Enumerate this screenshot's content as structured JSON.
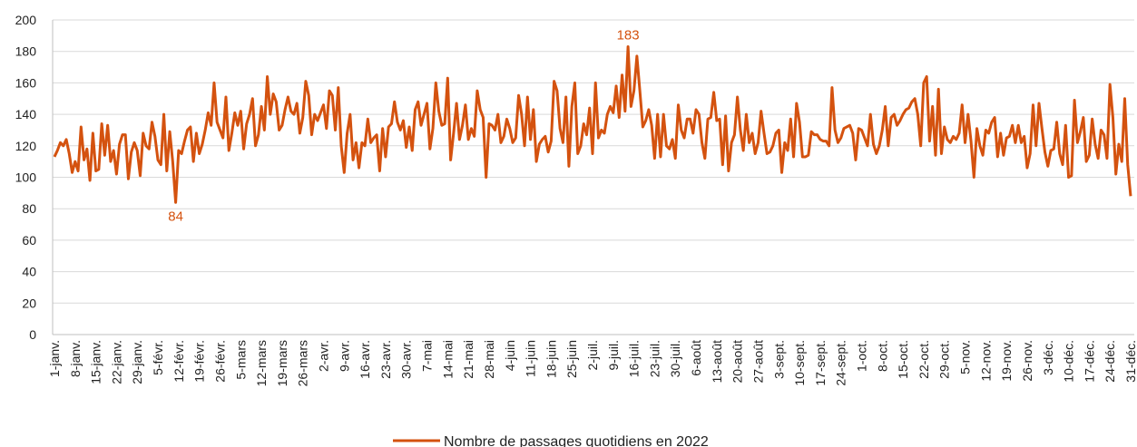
{
  "chart_data": {
    "type": "line",
    "categories": [
      "1-janv.",
      null,
      null,
      null,
      null,
      null,
      null,
      "8-janv.",
      null,
      null,
      null,
      null,
      null,
      null,
      "15-janv.",
      null,
      null,
      null,
      null,
      null,
      null,
      "22-janv.",
      null,
      null,
      null,
      null,
      null,
      null,
      "29-janv.",
      null,
      null,
      null,
      null,
      null,
      null,
      "5-févr.",
      null,
      null,
      null,
      null,
      null,
      null,
      "12-févr.",
      null,
      null,
      null,
      null,
      null,
      null,
      "19-févr.",
      null,
      null,
      null,
      null,
      null,
      null,
      "26-févr.",
      null,
      null,
      null,
      null,
      null,
      null,
      "5-mars",
      null,
      null,
      null,
      null,
      null,
      null,
      "12-mars",
      null,
      null,
      null,
      null,
      null,
      null,
      "19-mars",
      null,
      null,
      null,
      null,
      null,
      null,
      "26-mars",
      null,
      null,
      null,
      null,
      null,
      null,
      "2-avr.",
      null,
      null,
      null,
      null,
      null,
      null,
      "9-avr.",
      null,
      null,
      null,
      null,
      null,
      null,
      "16-avr.",
      null,
      null,
      null,
      null,
      null,
      null,
      "23-avr.",
      null,
      null,
      null,
      null,
      null,
      null,
      "30-avr.",
      null,
      null,
      null,
      null,
      null,
      null,
      "7-mai",
      null,
      null,
      null,
      null,
      null,
      null,
      "14-mai",
      null,
      null,
      null,
      null,
      null,
      null,
      "21-mai",
      null,
      null,
      null,
      null,
      null,
      null,
      "28-mai",
      null,
      null,
      null,
      null,
      null,
      null,
      "4-juin",
      null,
      null,
      null,
      null,
      null,
      null,
      "11-juin",
      null,
      null,
      null,
      null,
      null,
      null,
      "18-juin",
      null,
      null,
      null,
      null,
      null,
      null,
      "25-juin",
      null,
      null,
      null,
      null,
      null,
      null,
      "2-juil.",
      null,
      null,
      null,
      null,
      null,
      null,
      "9-juil.",
      null,
      null,
      null,
      null,
      null,
      null,
      "16-juil.",
      null,
      null,
      null,
      null,
      null,
      null,
      "23-juil.",
      null,
      null,
      null,
      null,
      null,
      null,
      "30-juil.",
      null,
      null,
      null,
      null,
      null,
      null,
      "6-août",
      null,
      null,
      null,
      null,
      null,
      null,
      "13-août",
      null,
      null,
      null,
      null,
      null,
      null,
      "20-août",
      null,
      null,
      null,
      null,
      null,
      null,
      "27-août",
      null,
      null,
      null,
      null,
      null,
      null,
      "3-sept.",
      null,
      null,
      null,
      null,
      null,
      null,
      "10-sept.",
      null,
      null,
      null,
      null,
      null,
      null,
      "17-sept.",
      null,
      null,
      null,
      null,
      null,
      null,
      "24-sept.",
      null,
      null,
      null,
      null,
      null,
      null,
      "1-oct.",
      null,
      null,
      null,
      null,
      null,
      null,
      "8-oct.",
      null,
      null,
      null,
      null,
      null,
      null,
      "15-oct.",
      null,
      null,
      null,
      null,
      null,
      null,
      "22-oct.",
      null,
      null,
      null,
      null,
      null,
      null,
      "29-oct.",
      null,
      null,
      null,
      null,
      null,
      null,
      "5-nov.",
      null,
      null,
      null,
      null,
      null,
      null,
      "12-nov.",
      null,
      null,
      null,
      null,
      null,
      null,
      "19-nov.",
      null,
      null,
      null,
      null,
      null,
      null,
      "26-nov.",
      null,
      null,
      null,
      null,
      null,
      null,
      "3-déc.",
      null,
      null,
      null,
      null,
      null,
      null,
      "10-déc.",
      null,
      null,
      null,
      null,
      null,
      null,
      "17-déc.",
      null,
      null,
      null,
      null,
      null,
      null,
      "24-déc.",
      null,
      null,
      null,
      null,
      null,
      null,
      "31-déc."
    ],
    "series": [
      {
        "name": "Nombre de passages quotidiens en 2022",
        "color": "#d4520f",
        "values": [
          113,
          117,
          122,
          120,
          124,
          115,
          103,
          110,
          104,
          132,
          111,
          118,
          98,
          128,
          104,
          105,
          134,
          114,
          133,
          110,
          117,
          102,
          121,
          127,
          127,
          99,
          116,
          122,
          117,
          101,
          128,
          120,
          118,
          135,
          126,
          111,
          108,
          140,
          104,
          129,
          110,
          84,
          117,
          115,
          123,
          130,
          132,
          110,
          128,
          115,
          121,
          130,
          141,
          133,
          160,
          135,
          130,
          125,
          151,
          117,
          128,
          141,
          133,
          142,
          118,
          134,
          140,
          150,
          120,
          127,
          145,
          130,
          164,
          140,
          153,
          148,
          130,
          133,
          143,
          151,
          142,
          140,
          147,
          128,
          138,
          161,
          152,
          127,
          140,
          136,
          141,
          146,
          131,
          155,
          152,
          130,
          157,
          120,
          103,
          128,
          140,
          111,
          122,
          106,
          122,
          120,
          137,
          122,
          125,
          127,
          104,
          131,
          113,
          132,
          134,
          148,
          135,
          130,
          136,
          119,
          132,
          117,
          143,
          148,
          133,
          140,
          147,
          118,
          131,
          160,
          142,
          133,
          134,
          163,
          111,
          128,
          147,
          124,
          133,
          146,
          124,
          131,
          126,
          155,
          143,
          138,
          100,
          134,
          133,
          130,
          140,
          122,
          126,
          137,
          131,
          122,
          125,
          152,
          140,
          120,
          151,
          124,
          143,
          110,
          121,
          124,
          126,
          116,
          123,
          161,
          155,
          131,
          122,
          151,
          107,
          145,
          160,
          115,
          120,
          134,
          127,
          144,
          115,
          160,
          125,
          130,
          128,
          140,
          145,
          141,
          158,
          138,
          165,
          142,
          183,
          145,
          155,
          177,
          155,
          132,
          136,
          143,
          133,
          112,
          140,
          113,
          140,
          120,
          118,
          124,
          112,
          146,
          130,
          125,
          137,
          137,
          128,
          143,
          140,
          122,
          112,
          137,
          138,
          154,
          136,
          137,
          108,
          139,
          104,
          122,
          127,
          151,
          130,
          117,
          140,
          122,
          128,
          115,
          122,
          142,
          128,
          115,
          116,
          120,
          128,
          130,
          103,
          122,
          117,
          137,
          113,
          147,
          135,
          113,
          113,
          114,
          129,
          127,
          127,
          124,
          123,
          123,
          120,
          157,
          130,
          122,
          125,
          131,
          132,
          133,
          128,
          111,
          131,
          130,
          125,
          120,
          140,
          121,
          115,
          120,
          130,
          145,
          120,
          138,
          140,
          133,
          136,
          140,
          143,
          144,
          148,
          150,
          140,
          120,
          160,
          164,
          123,
          145,
          114,
          156,
          115,
          132,
          124,
          122,
          126,
          124,
          128,
          146,
          122,
          140,
          123,
          100,
          131,
          120,
          114,
          130,
          128,
          135,
          138,
          113,
          128,
          114,
          125,
          126,
          133,
          122,
          133,
          122,
          126,
          106,
          115,
          146,
          120,
          147,
          131,
          116,
          107,
          117,
          118,
          135,
          115,
          108,
          133,
          100,
          101,
          149,
          122,
          129,
          138,
          110,
          114,
          137,
          121,
          112,
          130,
          127,
          112,
          159,
          138,
          102,
          121,
          110,
          150,
          108,
          88
        ],
        "value_labels": [
          null,
          null,
          null,
          null,
          null,
          null,
          null,
          null,
          null,
          null,
          null,
          null,
          null,
          null,
          null,
          null,
          null,
          null,
          null,
          null,
          null,
          null,
          null,
          null,
          null,
          null,
          null,
          null,
          null,
          null,
          null,
          null,
          null,
          null,
          null,
          null,
          null,
          null,
          null,
          null,
          null,
          "84",
          null,
          null,
          null,
          null,
          null,
          null,
          null,
          null,
          null,
          null,
          null,
          null,
          null,
          null,
          null,
          null,
          null,
          null,
          null,
          null,
          null,
          null,
          null,
          null,
          null,
          null,
          null,
          null,
          null,
          null,
          null,
          null,
          null,
          null,
          null,
          null,
          null,
          null,
          null,
          null,
          null,
          null,
          null,
          null,
          null,
          null,
          null,
          null,
          null,
          null,
          null,
          null,
          null,
          null,
          null,
          null,
          null,
          null,
          null,
          null,
          null,
          null,
          null,
          null,
          null,
          null,
          null,
          null,
          null,
          null,
          null,
          null,
          null,
          null,
          null,
          null,
          null,
          null,
          null,
          null,
          null,
          null,
          null,
          null,
          null,
          null,
          null,
          null,
          null,
          null,
          null,
          null,
          null,
          null,
          null,
          null,
          null,
          null,
          null,
          null,
          null,
          null,
          null,
          null,
          null,
          null,
          null,
          null,
          null,
          null,
          null,
          null,
          null,
          null,
          null,
          null,
          null,
          null,
          null,
          null,
          null,
          null,
          null,
          null,
          null,
          null,
          null,
          null,
          null,
          null,
          null,
          null,
          null,
          null,
          null,
          null,
          null,
          null,
          null,
          null,
          null,
          null,
          null,
          null,
          null,
          null,
          null,
          null,
          null,
          null,
          null,
          null,
          "183",
          null,
          null,
          null,
          null,
          null,
          null,
          null,
          null,
          null,
          null,
          null,
          null,
          null,
          null,
          null,
          null,
          null,
          null,
          null,
          null,
          null,
          null,
          null,
          null,
          null,
          null,
          null,
          null,
          null,
          null,
          null,
          null,
          null,
          null,
          null,
          null,
          null,
          null,
          null,
          null,
          null,
          null,
          null,
          null,
          null,
          null,
          null,
          null,
          null,
          null,
          null,
          null,
          null,
          null,
          null,
          null,
          null,
          null,
          null,
          null,
          null,
          null,
          null,
          null,
          null,
          null,
          null,
          null,
          null,
          null,
          null,
          null,
          null,
          null,
          null,
          null,
          null,
          null,
          null,
          null,
          null,
          null,
          null,
          null,
          null,
          null,
          null,
          null,
          null,
          null,
          null,
          null,
          null,
          null,
          null,
          null,
          null,
          null,
          null,
          null,
          null,
          null,
          null,
          null,
          null,
          null,
          null,
          null,
          null,
          null,
          null,
          null,
          null,
          null,
          null,
          null,
          null,
          null,
          null,
          null,
          null,
          null,
          null,
          null,
          null,
          null,
          null,
          null,
          null,
          null,
          null,
          null,
          null,
          null,
          null,
          null,
          null,
          null,
          null,
          null,
          null,
          null,
          null,
          null,
          null,
          null,
          null,
          null,
          null,
          null,
          null,
          null,
          null,
          null,
          null,
          null,
          null,
          null,
          null,
          null,
          null,
          null,
          null,
          null,
          null,
          null,
          null,
          null,
          null,
          null
        ]
      }
    ],
    "ylim": [
      0,
      200
    ],
    "yticks": [
      0,
      20,
      40,
      60,
      80,
      100,
      120,
      140,
      160,
      180,
      200
    ],
    "grid": true,
    "legend": "bottom"
  }
}
